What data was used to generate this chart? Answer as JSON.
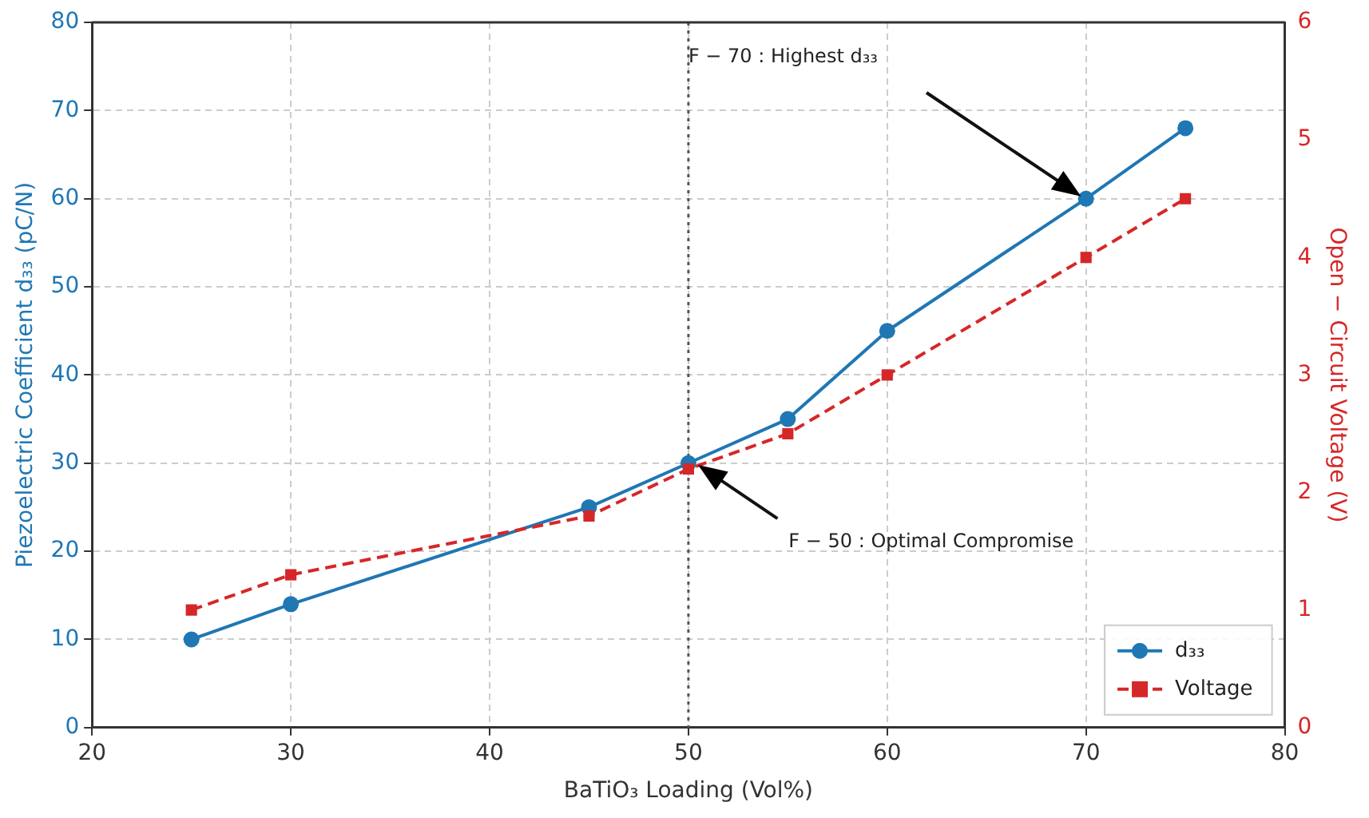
{
  "chart_data": {
    "type": "line",
    "xlabel": "BaTiO₃ Loading (Vol%)",
    "ylabel": "Piezoelectric Coefficient d₃₃ (pC/N)",
    "y2label": "Open − Circuit Voltage (V)",
    "x": [
      25,
      30,
      45,
      50,
      55,
      60,
      70,
      75
    ],
    "series": [
      {
        "name": "d₃₃",
        "color": "#1f77b4",
        "values": [
          10,
          14,
          25,
          30,
          35,
          45,
          60,
          68
        ],
        "marker": "circle",
        "line_style": "solid"
      },
      {
        "name": "Voltage",
        "color": "#d62728",
        "values": [
          1.0,
          1.3,
          1.8,
          2.2,
          2.5,
          3.0,
          4.0,
          4.5
        ],
        "axis": "y2",
        "marker": "square",
        "line_style": "dashed"
      }
    ],
    "xlim": [
      20,
      80
    ],
    "xticks": [
      20,
      30,
      40,
      50,
      60,
      70,
      80
    ],
    "ylim": [
      0,
      80
    ],
    "yticks": [
      0,
      10,
      20,
      30,
      40,
      50,
      60,
      70,
      80
    ],
    "y2lim": [
      0,
      6
    ],
    "y2ticks": [
      0,
      1,
      2,
      3,
      4,
      5,
      6
    ],
    "ref_lines": [
      {
        "axis": "x",
        "value": 50,
        "color": "#555555",
        "line_style": "dotted"
      }
    ],
    "annotations": [
      "F − 70 : Highest d₃₃",
      "F − 50 : Optimal Compromise"
    ],
    "grid": true,
    "legend": "bottom right"
  }
}
